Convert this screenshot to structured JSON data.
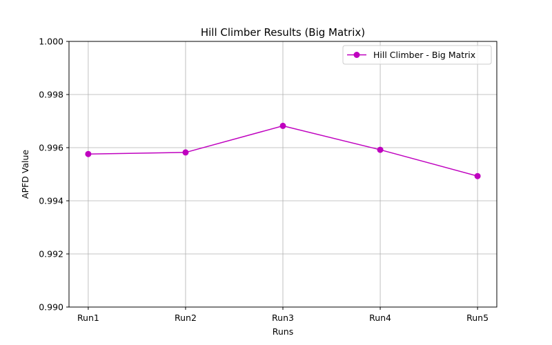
{
  "chart_data": {
    "type": "line",
    "title": "Hill Climber Results (Big Matrix)",
    "xlabel": "Runs",
    "ylabel": "APFD Value",
    "categories": [
      "Run1",
      "Run2",
      "Run3",
      "Run4",
      "Run5"
    ],
    "series": [
      {
        "name": "Hill Climber - Big Matrix",
        "values": [
          0.99576,
          0.99582,
          0.99682,
          0.99592,
          0.99493
        ],
        "color": "#bf00bf",
        "marker": "circle"
      }
    ],
    "ylim": [
      0.99,
      1.0
    ],
    "yticks": [
      "0.990",
      "0.992",
      "0.994",
      "0.996",
      "0.998",
      "1.000"
    ],
    "grid": true,
    "legend_position": "top-right"
  }
}
